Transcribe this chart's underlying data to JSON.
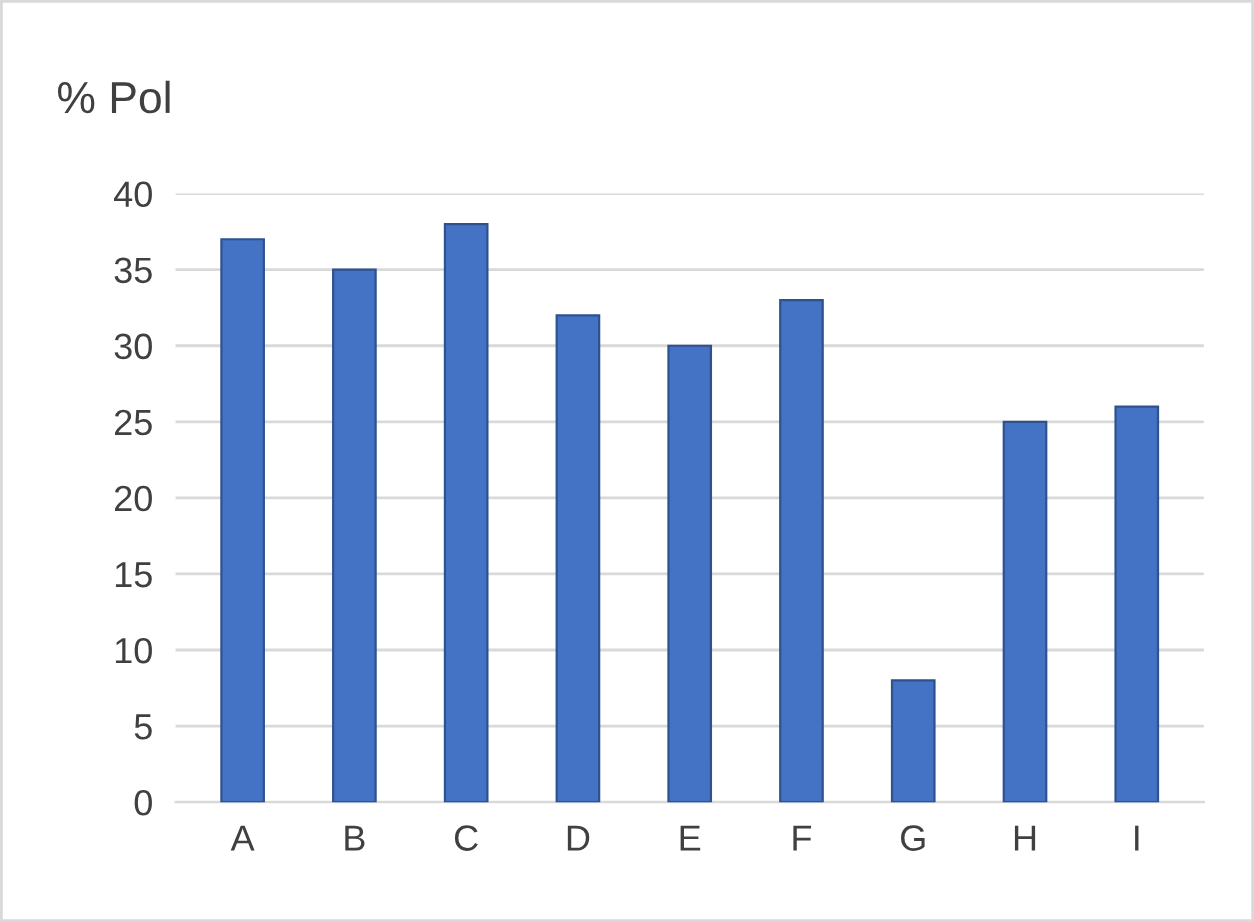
{
  "chart_data": {
    "type": "bar",
    "title": "% Pol",
    "categories": [
      "A",
      "B",
      "C",
      "D",
      "E",
      "F",
      "G",
      "H",
      "I"
    ],
    "values": [
      37,
      35,
      38,
      32,
      30,
      33,
      8,
      25,
      26
    ],
    "color": "#4472c4",
    "ylim": [
      0,
      40
    ],
    "yticks": [
      0,
      5,
      10,
      15,
      20,
      25,
      30,
      35,
      40
    ],
    "grid": "y",
    "legend": false
  }
}
